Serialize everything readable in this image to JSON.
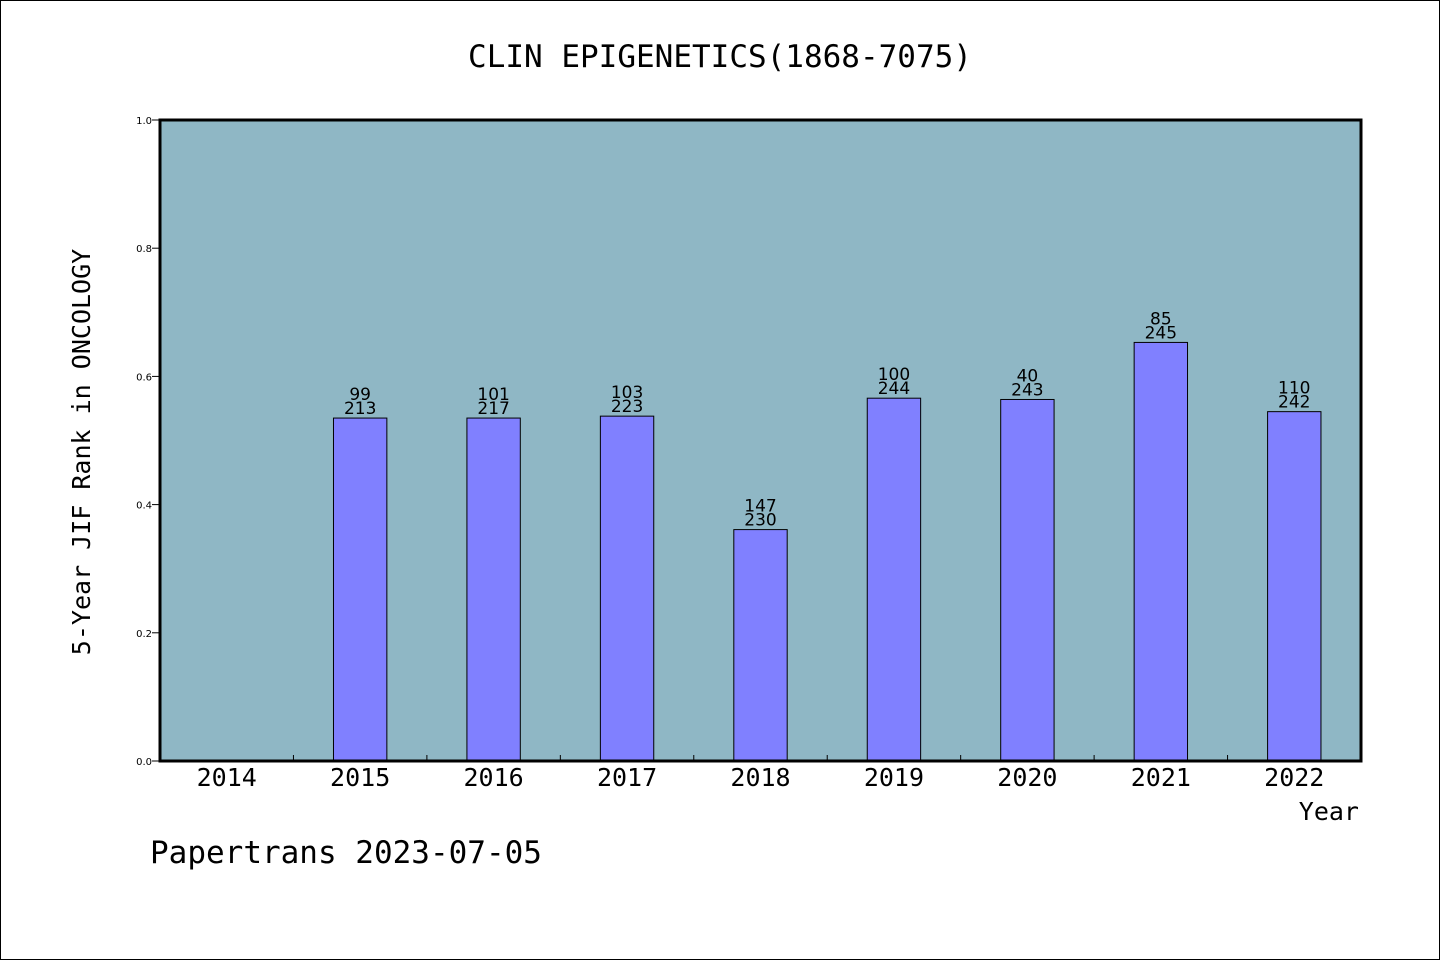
{
  "chart_data": {
    "type": "bar",
    "title": "CLIN EPIGENETICS(1868-7075)",
    "xlabel": "Year",
    "ylabel": "5-Year JIF Rank in ONCOLOGY",
    "categories": [
      "2014",
      "2015",
      "2016",
      "2017",
      "2018",
      "2019",
      "2020",
      "2021",
      "2022"
    ],
    "values": [
      null,
      0.535,
      0.535,
      0.538,
      0.361,
      0.566,
      0.564,
      0.653,
      0.545
    ],
    "label_top": [
      "",
      "99",
      "101",
      "103",
      "147",
      "100",
      "40",
      "85",
      "110"
    ],
    "label_bottom": [
      "",
      "213",
      "217",
      "223",
      "230",
      "244",
      "243",
      "245",
      "242"
    ],
    "ylim": [
      0,
      1.0
    ],
    "yticks": [
      "0.0",
      "0.2",
      "0.4",
      "0.6",
      "0.8",
      "1.0"
    ],
    "grid": false,
    "colors": {
      "plot_background": "#8fb7c5",
      "bar": "#8080ff",
      "bar_edge": "#000000"
    }
  },
  "footer": {
    "watermark": "Papertrans 2023-07-05"
  }
}
